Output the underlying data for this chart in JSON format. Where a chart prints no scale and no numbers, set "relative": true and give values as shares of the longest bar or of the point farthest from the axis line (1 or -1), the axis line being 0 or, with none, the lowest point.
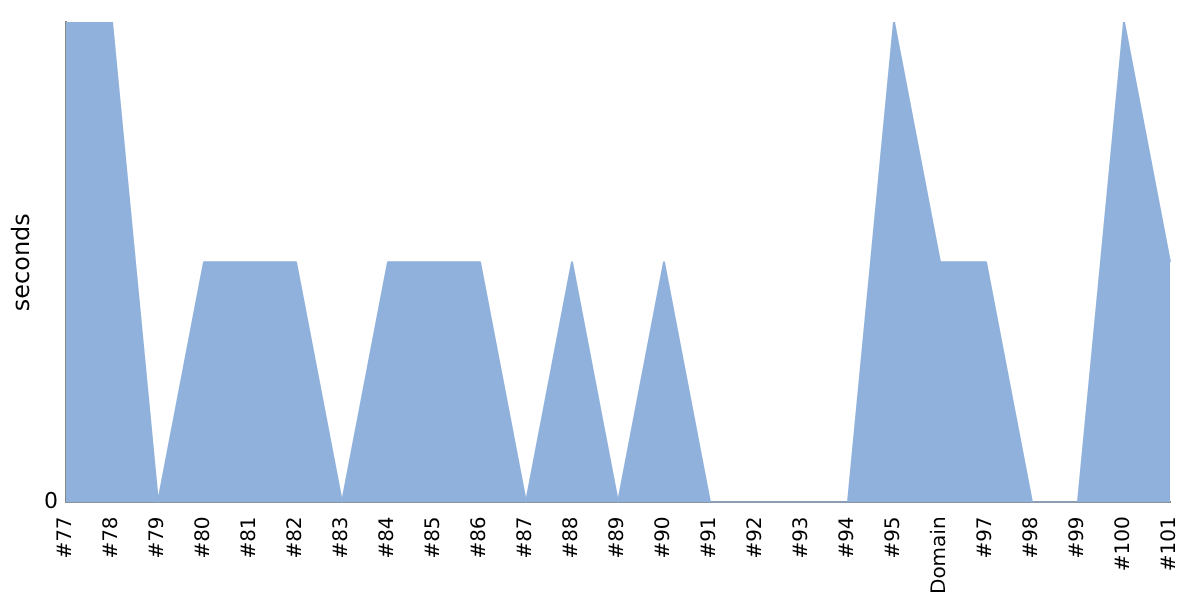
{
  "chart_data": {
    "type": "area",
    "ylabel": "seconds",
    "relative": true,
    "grid": false,
    "legend": false,
    "categories": [
      "#77",
      "#78",
      "#79",
      "#80",
      "#81",
      "#82",
      "#83",
      "#84",
      "#85",
      "#86",
      "#87",
      "#88",
      "#89",
      "#90",
      "#91",
      "#92",
      "#93",
      "#94",
      "#95",
      "Domain",
      "#97",
      "#98",
      "#99",
      "#100",
      "#101"
    ],
    "series": [
      {
        "color": "#8fb1dc",
        "values": [
          1,
          1,
          0,
          0.5,
          0.5,
          0.5,
          0,
          0.5,
          0.5,
          0.5,
          0,
          0.5,
          0,
          0.5,
          0,
          0,
          0,
          0,
          1,
          0.5,
          0.5,
          0,
          0,
          1,
          0.5
        ]
      }
    ],
    "annotations": [
      "0"
    ]
  }
}
